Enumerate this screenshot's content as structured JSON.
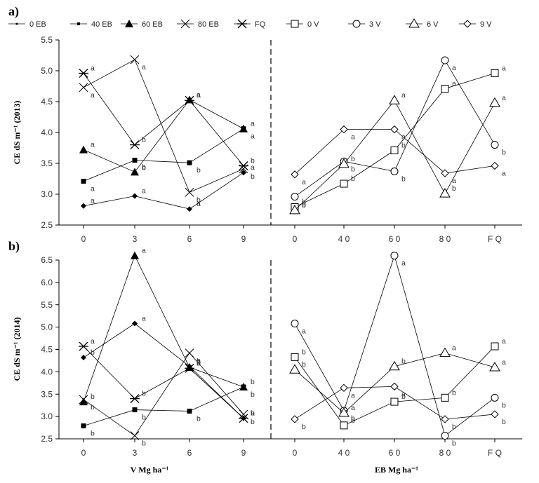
{
  "panel_labels": [
    "a)",
    "b)"
  ],
  "legend_left": [
    "0  EB",
    "40 EB",
    "60 EB",
    "80 EB",
    "FQ"
  ],
  "legend_right": [
    "0 V",
    "3 V",
    "6 V",
    "9 V"
  ],
  "chart_data": [
    {
      "type": "line",
      "panel": "a",
      "ylabel": "CE dS m⁻¹ (2013)",
      "ylim": [
        2.5,
        5.5
      ],
      "yticks": [
        "2.5",
        "3.0",
        "3.5",
        "4.0",
        "4.5",
        "5.0",
        "5.5"
      ],
      "left": {
        "categories": [
          "0",
          "3",
          "6",
          "9"
        ],
        "series": [
          {
            "name": "0  EB",
            "marker": "diamond",
            "values": [
              2.81,
              2.97,
              2.76,
              3.35
            ],
            "letters": [
              "a",
              "a",
              "a",
              "a"
            ]
          },
          {
            "name": "40 EB",
            "marker": "square",
            "values": [
              3.21,
              3.55,
              3.51,
              4.06
            ],
            "letters": [
              "a",
              "b",
              "b",
              "a"
            ]
          },
          {
            "name": "60 EB",
            "marker": "triangle",
            "values": [
              3.72,
              3.36,
              4.53,
              4.06
            ],
            "letters": [
              "a",
              "b",
              "a",
              "a"
            ]
          },
          {
            "name": "80 EB",
            "marker": "x",
            "values": [
              4.73,
              5.18,
              3.03,
              3.41
            ],
            "letters": [
              "a",
              "a",
              "b",
              "b"
            ]
          },
          {
            "name": "FQ",
            "marker": "star",
            "values": [
              4.96,
              3.8,
              4.52,
              3.46
            ],
            "letters": [
              "a",
              "b",
              "a",
              "b"
            ]
          }
        ]
      },
      "right": {
        "categories": [
          "0",
          "40",
          "60",
          "80",
          "FQ"
        ],
        "series": [
          {
            "name": "0 V",
            "marker": "open-square",
            "values": [
              2.79,
              3.17,
              3.71,
              4.71,
              4.96
            ],
            "letters": [
              "b",
              "b",
              "b",
              "a",
              "a"
            ]
          },
          {
            "name": "3 V",
            "marker": "open-circle",
            "values": [
              2.96,
              3.53,
              3.37,
              5.17,
              3.8
            ],
            "letters": [
              "b",
              "b",
              "b",
              "a",
              "b"
            ]
          },
          {
            "name": "6 V",
            "marker": "open-triangle",
            "values": [
              2.74,
              3.49,
              4.52,
              3.01,
              4.48
            ],
            "letters": [
              "b",
              "b",
              "a",
              "b",
              "a"
            ]
          },
          {
            "name": "9 V",
            "marker": "open-diamond",
            "values": [
              3.32,
              4.05,
              4.05,
              3.34,
              3.46
            ],
            "letters": [
              "a",
              "a",
              "a",
              "a",
              "a"
            ]
          }
        ]
      }
    },
    {
      "type": "line",
      "panel": "b",
      "ylabel": "CE dS m⁻¹ (2014)",
      "ylim": [
        2.5,
        6.5
      ],
      "yticks": [
        "2.5",
        "3.0",
        "3.5",
        "4.0",
        "4.5",
        "5.0",
        "5.5",
        "6.0",
        "6.5"
      ],
      "left": {
        "xlabel": "V Mg ha⁻¹",
        "categories": [
          "0",
          "3",
          "6",
          "9"
        ],
        "series": [
          {
            "name": "0  EB",
            "marker": "diamond",
            "values": [
              4.32,
              5.08,
              4.12,
              2.96
            ],
            "letters": [
              "b",
              "a",
              "b",
              "b"
            ]
          },
          {
            "name": "40 EB",
            "marker": "square",
            "values": [
              2.79,
              3.15,
              3.12,
              3.66
            ],
            "letters": [
              "b",
              "b",
              "b",
              "b"
            ]
          },
          {
            "name": "60 EB",
            "marker": "triangle",
            "values": [
              3.33,
              6.6,
              4.1,
              3.66
            ],
            "letters": [
              "b",
              "a",
              "b",
              "b"
            ]
          },
          {
            "name": "80 EB",
            "marker": "x",
            "values": [
              3.38,
              2.57,
              4.42,
              3.05
            ],
            "letters": [
              "b",
              "b",
              "a",
              "b"
            ]
          },
          {
            "name": "FQ",
            "marker": "star",
            "values": [
              4.57,
              3.4,
              4.08,
              2.96
            ],
            "letters": [
              "a",
              "b",
              "b",
              "a"
            ]
          }
        ]
      },
      "right": {
        "xlabel": "EB Mg ha⁻¹",
        "categories": [
          "0",
          "40",
          "60",
          "80",
          "FQ"
        ],
        "series": [
          {
            "name": "0 V",
            "marker": "open-square",
            "values": [
              4.33,
              2.8,
              3.33,
              3.42,
              4.57
            ],
            "letters": [
              "b",
              "b",
              "b",
              "b",
              "a"
            ]
          },
          {
            "name": "3 V",
            "marker": "open-circle",
            "values": [
              5.08,
              3.13,
              6.6,
              2.57,
              3.42
            ],
            "letters": [
              "a",
              "b",
              "a",
              "b",
              "b"
            ]
          },
          {
            "name": "6 V",
            "marker": "open-triangle",
            "values": [
              4.05,
              3.08,
              4.12,
              4.42,
              4.1
            ],
            "letters": [
              "b",
              "a",
              "b",
              "a",
              "a"
            ]
          },
          {
            "name": "9 V",
            "marker": "open-diamond",
            "values": [
              2.94,
              3.64,
              3.67,
              2.94,
              3.05
            ],
            "letters": [
              "b",
              "a",
              "a",
              "b",
              "b"
            ]
          }
        ]
      }
    }
  ]
}
